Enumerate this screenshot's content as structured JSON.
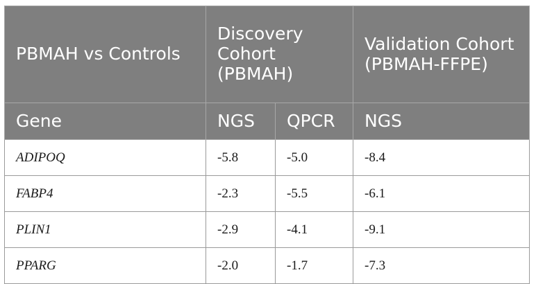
{
  "header": {
    "comparison": "PBMAH vs Controls",
    "discovery_cohort": "Discovery Cohort (PBMAH)",
    "validation_cohort": "Validation Cohort (PBMAH-FFPE)",
    "gene_label": "Gene",
    "ngs_label": "NGS",
    "qpcr_label": "QPCR",
    "validation_ngs_label": "NGS"
  },
  "rows": [
    {
      "gene": "ADIPOQ",
      "ngs": "-5.8",
      "qpcr": "-5.0",
      "validation_ngs": "-8.4"
    },
    {
      "gene": "FABP4",
      "ngs": "-2.3",
      "qpcr": "-5.5",
      "validation_ngs": "-6.1"
    },
    {
      "gene": "PLIN1",
      "ngs": "-2.9",
      "qpcr": "-4.1",
      "validation_ngs": "-9.1"
    },
    {
      "gene": "PPARG",
      "ngs": "-2.0",
      "qpcr": "-1.7",
      "validation_ngs": "-7.3"
    }
  ],
  "colors": {
    "header_bg": "#7f7f7f",
    "header_text": "#ffffff",
    "border": "#9a9a9a"
  }
}
